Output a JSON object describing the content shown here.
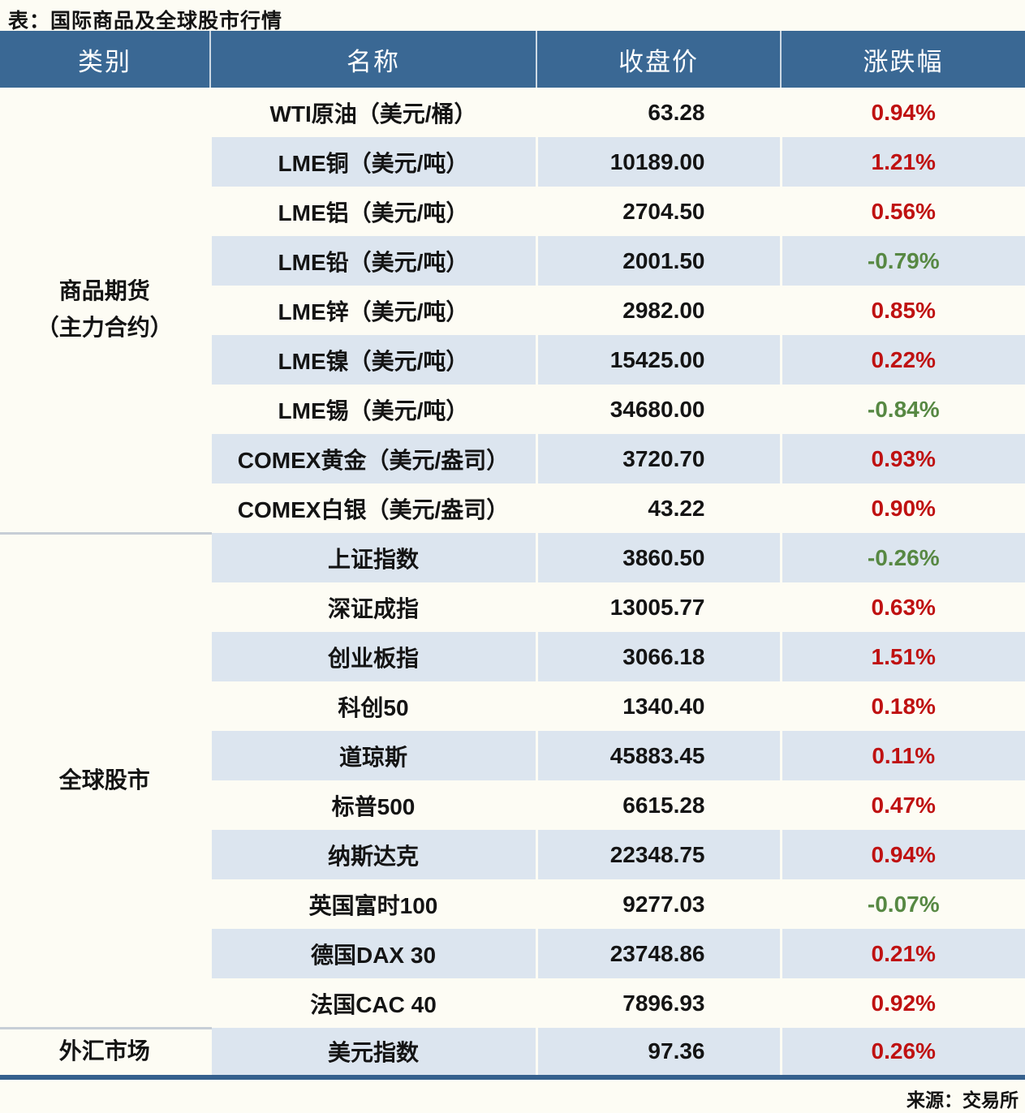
{
  "page_title": "表：国际商品及全球股市行情",
  "source_note": "来源：交易所",
  "colors": {
    "page_bg": "#fdfcf4",
    "header_bg": "#3a6894",
    "header_fg": "#ffffff",
    "stripe_bg": "#dce5ef",
    "text": "#141414",
    "up_red": "#bf1111",
    "down_green": "#578843",
    "bottom_rule": "#35608d",
    "group_sep": "#c7ced6"
  },
  "chart_data": {
    "type": "table",
    "title": "表：国际商品及全球股市行情",
    "source": "来源：交易所",
    "columns": [
      "类别",
      "名称",
      "收盘价",
      "涨跌幅"
    ],
    "color_convention": "涨跌幅正值为红色，负值为绿色",
    "groups": [
      {
        "category": "商品期货\n（主力合约）",
        "rows": [
          {
            "name": "WTI原油（美元/桶）",
            "close": "63.28",
            "change": "0.94%",
            "direction": "up"
          },
          {
            "name": "LME铜（美元/吨）",
            "close": "10189.00",
            "change": "1.21%",
            "direction": "up"
          },
          {
            "name": "LME铝（美元/吨）",
            "close": "2704.50",
            "change": "0.56%",
            "direction": "up"
          },
          {
            "name": "LME铅（美元/吨）",
            "close": "2001.50",
            "change": "-0.79%",
            "direction": "down"
          },
          {
            "name": "LME锌（美元/吨）",
            "close": "2982.00",
            "change": "0.85%",
            "direction": "up"
          },
          {
            "name": "LME镍（美元/吨）",
            "close": "15425.00",
            "change": "0.22%",
            "direction": "up"
          },
          {
            "name": "LME锡（美元/吨）",
            "close": "34680.00",
            "change": "-0.84%",
            "direction": "down"
          },
          {
            "name": "COMEX黄金（美元/盎司）",
            "close": "3720.70",
            "change": "0.93%",
            "direction": "up"
          },
          {
            "name": "COMEX白银（美元/盎司）",
            "close": "43.22",
            "change": "0.90%",
            "direction": "up"
          }
        ]
      },
      {
        "category": "全球股市",
        "rows": [
          {
            "name": "上证指数",
            "close": "3860.50",
            "change": "-0.26%",
            "direction": "down"
          },
          {
            "name": "深证成指",
            "close": "13005.77",
            "change": "0.63%",
            "direction": "up"
          },
          {
            "name": "创业板指",
            "close": "3066.18",
            "change": "1.51%",
            "direction": "up"
          },
          {
            "name": "科创50",
            "close": "1340.40",
            "change": "0.18%",
            "direction": "up"
          },
          {
            "name": "道琼斯",
            "close": "45883.45",
            "change": "0.11%",
            "direction": "up"
          },
          {
            "name": "标普500",
            "close": "6615.28",
            "change": "0.47%",
            "direction": "up"
          },
          {
            "name": "纳斯达克",
            "close": "22348.75",
            "change": "0.94%",
            "direction": "up"
          },
          {
            "name": "英国富时100",
            "close": "9277.03",
            "change": "-0.07%",
            "direction": "down"
          },
          {
            "name": "德国DAX 30",
            "close": "23748.86",
            "change": "0.21%",
            "direction": "up"
          },
          {
            "name": "法国CAC 40",
            "close": "7896.93",
            "change": "0.92%",
            "direction": "up"
          }
        ]
      },
      {
        "category": "外汇市场",
        "rows": [
          {
            "name": "美元指数",
            "close": "97.36",
            "change": "0.26%",
            "direction": "up"
          }
        ]
      }
    ]
  }
}
